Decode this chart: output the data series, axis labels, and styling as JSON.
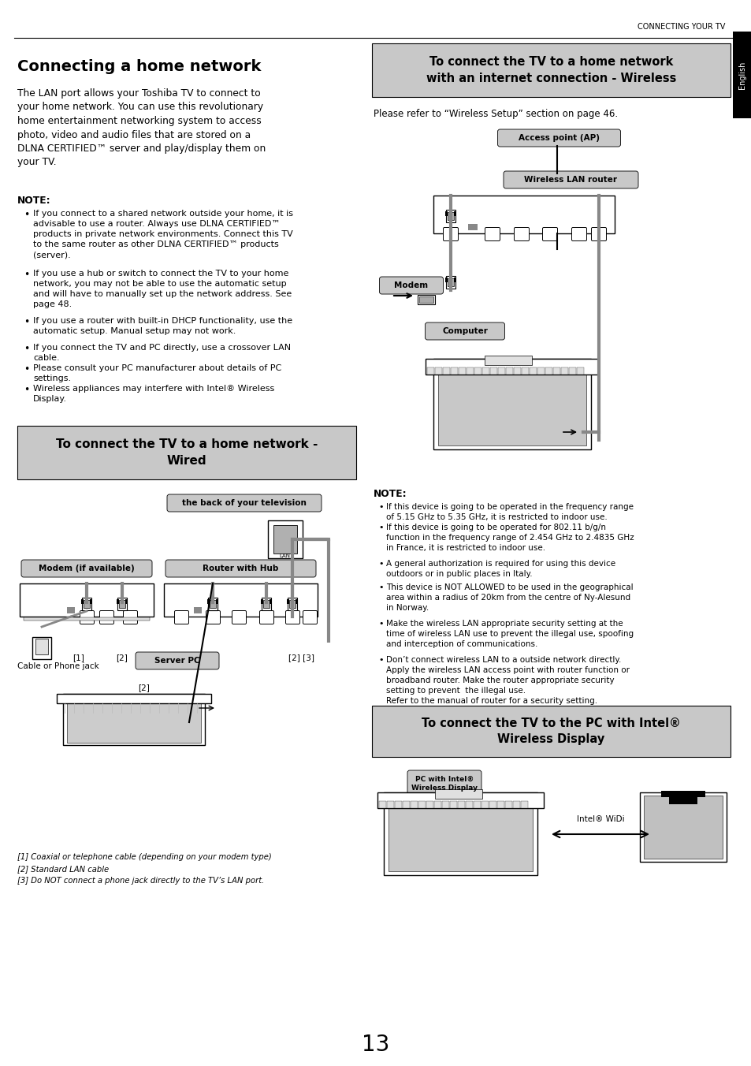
{
  "bg_color": "#ffffff",
  "page_width": 9.54,
  "page_height": 13.52,
  "dpi": 100,
  "header_text": "CONNECTING YOUR TV",
  "english_tab_text": "English",
  "title": "Connecting a home network",
  "intro_text": "The LAN port allows your Toshiba TV to connect to\nyour home network. You can use this revolutionary\nhome entertainment networking system to access\nphoto, video and audio files that are stored on a\nDLNA CERTIFIED™ server and play/display them on\nyour TV.",
  "note_label": "NOTE:",
  "note_items_formatted": [
    "If you connect to a shared network outside your home, it is\nadvisable to use a router. Always use DLNA CERTIFIED™\nproducts in private network environments. Connect this TV\nto the same router as other DLNA CERTIFIED™ products\n(server).",
    "If you use a hub or switch to connect the TV to your home\nnetwork, you may not be able to use the automatic setup\nand will have to manually set up the network address. See\npage 48.",
    "If you use a router with built-in DHCP functionality, use the\nautomatic setup. Manual setup may not work.",
    "If you connect the TV and PC directly, use a crossover LAN\ncable.",
    "Please consult your PC manufacturer about details of PC\nsettings.",
    "Wireless appliances may interfere with Intel® Wireless\nDisplay."
  ],
  "wired_box_title": "To connect the TV to a home network -\nWired",
  "wired_caption_back": "the back of your television",
  "wired_label_modem": "Modem (if available)",
  "wired_label_router": "Router with Hub",
  "wired_label_server": "Server PC",
  "wired_label_jack": "Cable or Phone jack",
  "wired_footnotes": [
    "[1] Coaxial or telephone cable (depending on your modem type)",
    "[2] Standard LAN cable",
    "[3] Do NOT connect a phone jack directly to the TV’s LAN port."
  ],
  "wireless_box_title": "To connect the TV to a home network\nwith an internet connection - Wireless",
  "wireless_refer": "Please refer to “Wireless Setup” section on page 46.",
  "wireless_label_ap": "Access point (AP)",
  "wireless_label_router": "Wireless LAN router",
  "wireless_label_modem": "Modem",
  "wireless_label_computer": "Computer",
  "wireless_note_label": "NOTE:",
  "wireless_note_items": [
    "If this device is going to be operated in the frequency range\nof 5.15 GHz to 5.35 GHz, it is restricted to indoor use.",
    "If this device is going to be operated for 802.11 b/g/n\nfunction in the frequency range of 2.454 GHz to 2.4835 GHz\nin France, it is restricted to indoor use.",
    "A general authorization is required for using this device\noutdoors or in public places in Italy.",
    "This device is NOT ALLOWED to be used in the geographical\narea within a radius of 20km from the centre of Ny-Alesund\nin Norway.",
    "Make the wireless LAN appropriate security setting at the\ntime of wireless LAN use to prevent the illegal use, spoofing\nand interception of communications.",
    "Don’t connect wireless LAN to a outside network directly.\nApply the wireless LAN access point with router function or\nbroadband router. Make the router appropriate security\nsetting to prevent  the illegal use.\nRefer to the manual of router for a security setting."
  ],
  "intel_box_title": "To connect the TV to the PC with Intel®\nWireless Display",
  "intel_label": "PC with Intel®\nWireless Display",
  "intel_widi": "Intel® WiDi",
  "page_number": "13",
  "gray_box_color": "#c8c8c8",
  "label_bg_color": "#c8c8c8",
  "cable_color": "#888888",
  "port_color": "#aaaaaa"
}
